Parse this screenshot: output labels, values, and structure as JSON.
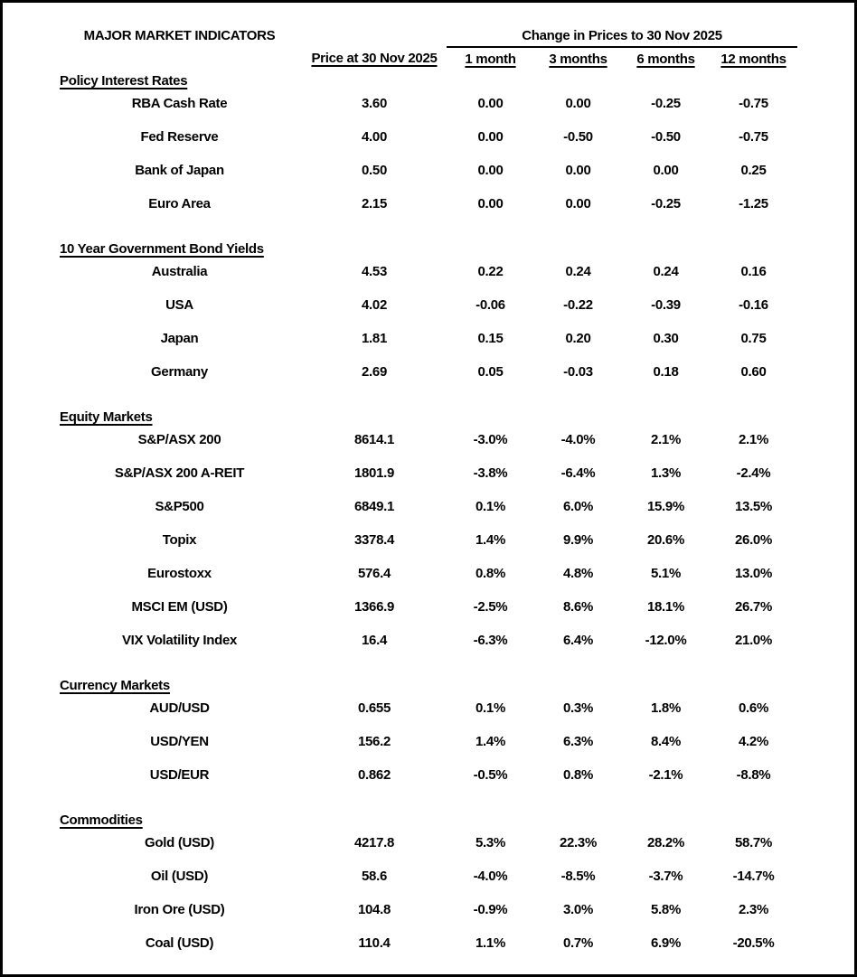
{
  "colors": {
    "background": "#ffffff",
    "text": "#000000",
    "border": "#000000"
  },
  "table": {
    "title": "MAJOR MARKET INDICATORS",
    "change_group_header": "Change in Prices to 30 Nov 2025",
    "column_headers": [
      "Price at 30 Nov 2025",
      "1 month",
      "3 months",
      "6 months",
      "12 months"
    ],
    "sections": [
      {
        "name": "Policy Interest Rates",
        "rows": [
          {
            "label": "RBA Cash Rate",
            "values": [
              "3.60",
              "0.00",
              "0.00",
              "-0.25",
              "-0.75"
            ]
          },
          {
            "label": "Fed Reserve",
            "values": [
              "4.00",
              "0.00",
              "-0.50",
              "-0.50",
              "-0.75"
            ]
          },
          {
            "label": "Bank of Japan",
            "values": [
              "0.50",
              "0.00",
              "0.00",
              "0.00",
              "0.25"
            ]
          },
          {
            "label": "Euro Area",
            "values": [
              "2.15",
              "0.00",
              "0.00",
              "-0.25",
              "-1.25"
            ]
          }
        ]
      },
      {
        "name": "10 Year Government Bond Yields",
        "rows": [
          {
            "label": "Australia",
            "values": [
              "4.53",
              "0.22",
              "0.24",
              "0.24",
              "0.16"
            ]
          },
          {
            "label": "USA",
            "values": [
              "4.02",
              "-0.06",
              "-0.22",
              "-0.39",
              "-0.16"
            ]
          },
          {
            "label": "Japan",
            "values": [
              "1.81",
              "0.15",
              "0.20",
              "0.30",
              "0.75"
            ]
          },
          {
            "label": "Germany",
            "values": [
              "2.69",
              "0.05",
              "-0.03",
              "0.18",
              "0.60"
            ]
          }
        ]
      },
      {
        "name": "Equity Markets",
        "rows": [
          {
            "label": "S&P/ASX 200",
            "values": [
              "8614.1",
              "-3.0%",
              "-4.0%",
              "2.1%",
              "2.1%"
            ]
          },
          {
            "label": "S&P/ASX 200 A-REIT",
            "values": [
              "1801.9",
              "-3.8%",
              "-6.4%",
              "1.3%",
              "-2.4%"
            ]
          },
          {
            "label": "S&P500",
            "values": [
              "6849.1",
              "0.1%",
              "6.0%",
              "15.9%",
              "13.5%"
            ]
          },
          {
            "label": "Topix",
            "values": [
              "3378.4",
              "1.4%",
              "9.9%",
              "20.6%",
              "26.0%"
            ]
          },
          {
            "label": "Eurostoxx",
            "values": [
              "576.4",
              "0.8%",
              "4.8%",
              "5.1%",
              "13.0%"
            ]
          },
          {
            "label": "MSCI EM (USD)",
            "values": [
              "1366.9",
              "-2.5%",
              "8.6%",
              "18.1%",
              "26.7%"
            ]
          },
          {
            "label": "VIX Volatility Index",
            "values": [
              "16.4",
              "-6.3%",
              "6.4%",
              "-12.0%",
              "21.0%"
            ]
          }
        ]
      },
      {
        "name": "Currency Markets",
        "rows": [
          {
            "label": "AUD/USD",
            "values": [
              "0.655",
              "0.1%",
              "0.3%",
              "1.8%",
              "0.6%"
            ]
          },
          {
            "label": "USD/YEN",
            "values": [
              "156.2",
              "1.4%",
              "6.3%",
              "8.4%",
              "4.2%"
            ]
          },
          {
            "label": "USD/EUR",
            "values": [
              "0.862",
              "-0.5%",
              "0.8%",
              "-2.1%",
              "-8.8%"
            ]
          }
        ]
      },
      {
        "name": "Commodities",
        "rows": [
          {
            "label": "Gold (USD)",
            "values": [
              "4217.8",
              "5.3%",
              "22.3%",
              "28.2%",
              "58.7%"
            ]
          },
          {
            "label": "Oil (USD)",
            "values": [
              "58.6",
              "-4.0%",
              "-8.5%",
              "-3.7%",
              "-14.7%"
            ]
          },
          {
            "label": "Iron Ore (USD)",
            "values": [
              "104.8",
              "-0.9%",
              "3.0%",
              "5.8%",
              "2.3%"
            ]
          },
          {
            "label": "Coal (USD)",
            "values": [
              "110.4",
              "1.1%",
              "0.7%",
              "6.9%",
              "-20.5%"
            ]
          }
        ]
      }
    ]
  }
}
